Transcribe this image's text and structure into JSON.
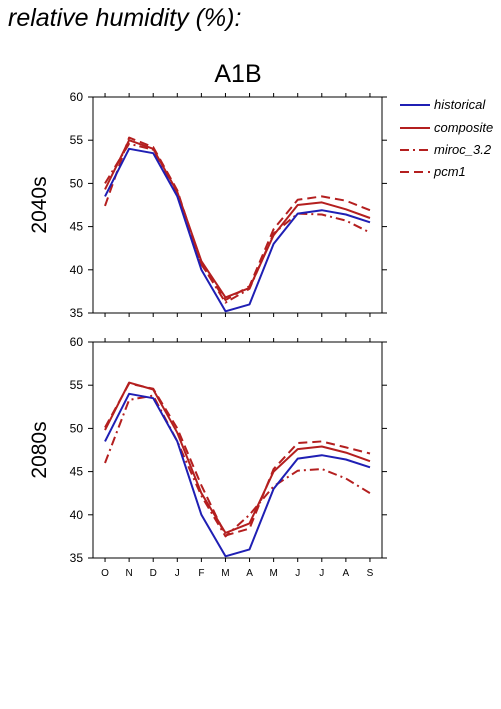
{
  "title": "relative humidity (%):",
  "scenario": "A1B",
  "legend": [
    "historical",
    "composite",
    "miroc_3.2",
    "pcm1"
  ],
  "colors": {
    "historical": "#1f1fb4",
    "future": "#b41f1f"
  },
  "chart_data": [
    {
      "type": "line",
      "title": "A1B",
      "ylabel": "2040s",
      "xlabel": "",
      "categories": [
        "O",
        "N",
        "D",
        "J",
        "F",
        "M",
        "A",
        "M",
        "J",
        "J",
        "A",
        "S"
      ],
      "ylim": [
        35,
        60
      ],
      "yticks": [
        35,
        40,
        45,
        50,
        55,
        60
      ],
      "legend_position": "right",
      "grid": false,
      "series": [
        {
          "name": "historical",
          "style": "solid",
          "color": "#1f1fb4",
          "values": [
            48.5,
            54.0,
            53.5,
            48.5,
            40.0,
            35.2,
            36.0,
            43.0,
            46.5,
            46.9,
            46.4,
            45.5
          ]
        },
        {
          "name": "composite",
          "style": "solid",
          "color": "#b41f1f",
          "values": [
            49.3,
            55.0,
            54.0,
            49.0,
            41.0,
            36.8,
            37.9,
            44.0,
            47.5,
            47.8,
            47.0,
            46.0
          ]
        },
        {
          "name": "miroc_3.2",
          "style": "dashdot",
          "color": "#b41f1f",
          "values": [
            50.0,
            54.6,
            53.9,
            48.6,
            40.7,
            36.2,
            37.8,
            44.2,
            46.5,
            46.4,
            45.7,
            44.3
          ]
        },
        {
          "name": "pcm1",
          "style": "dash",
          "color": "#b41f1f",
          "values": [
            47.4,
            55.3,
            54.2,
            49.2,
            40.6,
            36.5,
            38.1,
            44.7,
            48.1,
            48.5,
            48.0,
            46.9
          ]
        }
      ]
    },
    {
      "type": "line",
      "title": "",
      "ylabel": "2080s",
      "xlabel": "",
      "categories": [
        "O",
        "N",
        "D",
        "J",
        "F",
        "M",
        "A",
        "M",
        "J",
        "J",
        "A",
        "S"
      ],
      "ylim": [
        35,
        60
      ],
      "yticks": [
        35,
        40,
        45,
        50,
        55,
        60
      ],
      "grid": false,
      "series": [
        {
          "name": "historical",
          "style": "solid",
          "color": "#1f1fb4",
          "values": [
            48.5,
            54.0,
            53.5,
            48.5,
            40.0,
            35.2,
            36.0,
            43.0,
            46.5,
            46.9,
            46.4,
            45.5
          ]
        },
        {
          "name": "composite",
          "style": "solid",
          "color": "#b41f1f",
          "values": [
            49.8,
            55.3,
            54.5,
            49.5,
            42.5,
            37.9,
            39.0,
            45.0,
            47.6,
            47.9,
            47.2,
            46.2
          ]
        },
        {
          "name": "miroc_3.2",
          "style": "dashdot",
          "color": "#b41f1f",
          "values": [
            46.0,
            53.3,
            53.8,
            48.5,
            42.2,
            37.5,
            40.0,
            43.3,
            45.1,
            45.3,
            44.2,
            42.5
          ]
        },
        {
          "name": "pcm1",
          "style": "dash",
          "color": "#b41f1f",
          "values": [
            50.1,
            55.2,
            54.6,
            50.0,
            43.4,
            37.6,
            38.4,
            45.3,
            48.3,
            48.5,
            47.8,
            47.1
          ]
        }
      ]
    }
  ]
}
